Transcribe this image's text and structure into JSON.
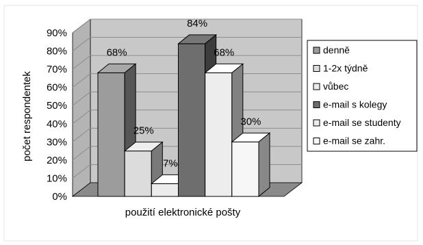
{
  "chart_data": {
    "type": "bar",
    "title": "",
    "xlabel": "použití elektronické pošty",
    "ylabel": "počet respondentek",
    "ylim": [
      0,
      90
    ],
    "yticks": [
      "0%",
      "10%",
      "20%",
      "30%",
      "40%",
      "50%",
      "60%",
      "70%",
      "80%",
      "90%"
    ],
    "grid": true,
    "legend_position": "right",
    "series": [
      {
        "name": "denně",
        "value": 68,
        "label": "68%",
        "color": "#9c9c9c"
      },
      {
        "name": "1-2x týdně",
        "value": 25,
        "label": "25%",
        "color": "#dcdcdc"
      },
      {
        "name": "vůbec",
        "value": 7,
        "label": "7%",
        "color": "#ececec"
      },
      {
        "name": "e-mail s kolegy",
        "value": 84,
        "label": "84%",
        "color": "#6e6e6e"
      },
      {
        "name": "e-mail se studenty",
        "value": 68,
        "label": "68%",
        "color": "#ededed"
      },
      {
        "name": "e-mail se zahr.",
        "value": 30,
        "label": "30%",
        "color": "#f7f7f7"
      }
    ],
    "colors": {
      "back_wall": "#c8c8c8",
      "side_wall": "#b4b4b4",
      "floor": "#8a8a8a",
      "grid": "#8c8c8c"
    }
  }
}
